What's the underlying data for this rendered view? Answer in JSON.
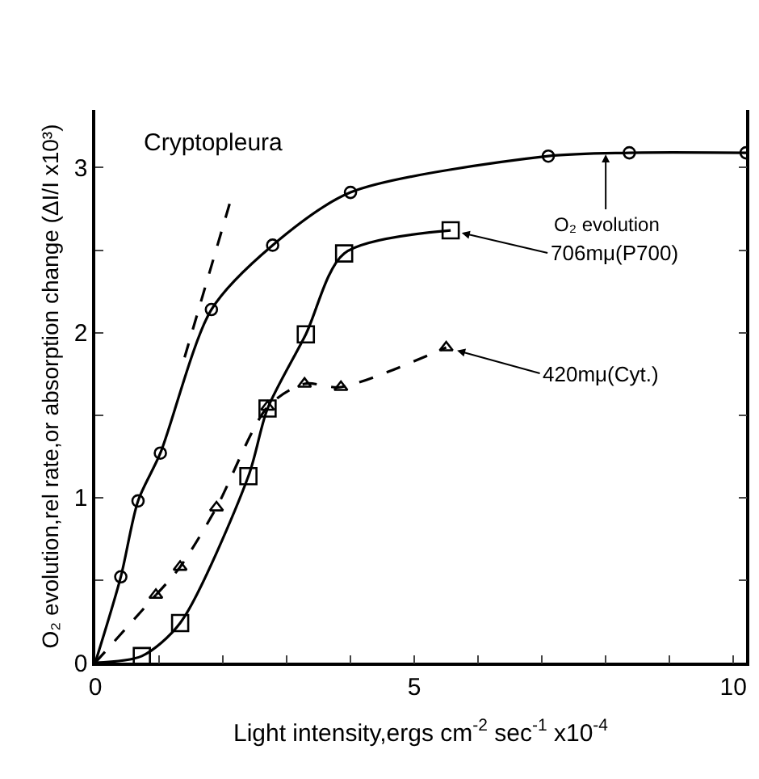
{
  "chart_data": {
    "type": "line",
    "xlabel": "Light intensity,ergs cm$^{-2}$ sec$^{-1}$ x10$^{-4}$",
    "ylabel": "O₂ evolution,rel rate,or absorption change (ΔI/I x10³)",
    "xlim": [
      0,
      10.2
    ],
    "ylim": [
      0,
      3.35
    ],
    "xticks": [
      0,
      {
        "value": 1,
        "label": null
      },
      {
        "value": 2,
        "label": null
      },
      {
        "value": 3,
        "label": null
      },
      {
        "value": 4,
        "label": null
      },
      5,
      {
        "value": 6,
        "label": null
      },
      {
        "value": 7,
        "label": null
      },
      {
        "value": 8,
        "label": null
      },
      {
        "value": 9,
        "label": null
      },
      10
    ],
    "yticks": [
      0,
      {
        "value": 0.5,
        "label": null
      },
      1,
      {
        "value": 1.5,
        "label": null
      },
      2,
      {
        "value": 2.5,
        "label": null
      },
      3
    ],
    "series": [
      {
        "type": "scatter",
        "marker": "circle",
        "color": "#000000",
        "x": [
          0.4,
          0.67,
          1.02,
          1.82,
          2.78,
          4.0,
          7.1,
          8.37,
          10.2
        ],
        "values": [
          0.52,
          0.98,
          1.27,
          2.14,
          2.53,
          2.85,
          3.07,
          3.09,
          3.09
        ]
      },
      {
        "type": "line",
        "marker": "none",
        "line_style": "solid",
        "color": "#000000",
        "x": [
          0,
          0.4,
          0.67,
          1.02,
          1.82,
          2.78,
          4.0,
          7.1,
          8.37,
          10.2
        ],
        "values": [
          0,
          0.52,
          0.98,
          1.27,
          2.14,
          2.53,
          2.85,
          3.07,
          3.09,
          3.09
        ]
      },
      {
        "type": "scatter",
        "marker": "square",
        "color": "#000000",
        "x": [
          0.73,
          1.33,
          2.4,
          2.7,
          3.3,
          3.9,
          5.57
        ],
        "values": [
          0.04,
          0.24,
          1.13,
          1.54,
          1.99,
          2.48,
          2.62
        ]
      },
      {
        "type": "line",
        "marker": "none",
        "line_style": "solid",
        "color": "#000000",
        "x": [
          0,
          0.73,
          1.33,
          2.4,
          2.7,
          3.3,
          3.9,
          5.57
        ],
        "values": [
          0,
          0.04,
          0.24,
          1.13,
          1.54,
          1.99,
          2.48,
          2.62
        ]
      },
      {
        "type": "line",
        "marker": "triangle",
        "line_style": "dashed",
        "color": "#000000",
        "x": [
          0.95,
          1.33,
          1.9,
          2.7,
          3.28,
          3.85,
          5.5
        ],
        "values": [
          0.41,
          0.58,
          0.94,
          1.55,
          1.69,
          1.67,
          1.91
        ]
      },
      {
        "type": "line",
        "marker": "none",
        "line_style": "dashed",
        "color": "#000000",
        "x": [
          0,
          0.95
        ],
        "values": [
          0,
          0.41
        ]
      },
      {
        "type": "line",
        "marker": "none",
        "line_style": "dashed",
        "color": "#000000",
        "x": [
          1.4,
          2.12
        ],
        "values": [
          1.85,
          2.8
        ]
      }
    ],
    "annotations": [
      "Cryptopleura",
      {
        "text": "O₂ evolution",
        "x": 8.0,
        "y": 3.08
      },
      {
        "text": "706mμ(P700)",
        "x": 5.57,
        "y": 2.62
      },
      {
        "text": "420mμ(Cyt.)",
        "x": 5.5,
        "y": 1.91
      }
    ]
  }
}
